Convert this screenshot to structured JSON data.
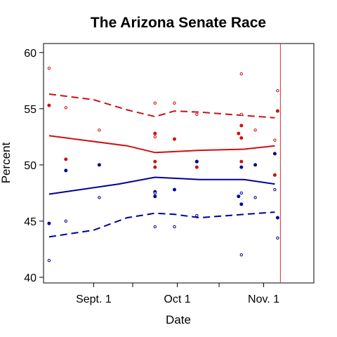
{
  "chart_data": {
    "type": "scatter",
    "title": "The Arizona Senate Race",
    "xlabel": "Date",
    "ylabel": "Percent",
    "x_axis": {
      "range": [
        "2006-08-14",
        "2006-11-19"
      ],
      "tick_labels": [
        {
          "date": "2006-09-01",
          "label": "Sept. 1"
        },
        {
          "date": "2006-10-01",
          "label": "Oct 1"
        },
        {
          "date": "2006-11-01",
          "label": "Nov. 1"
        }
      ],
      "minor_ticks": [
        "2006-09-15",
        "2006-10-16"
      ]
    },
    "y_axis": {
      "range": [
        39.5,
        60.8
      ],
      "ticks": [
        40,
        45,
        50,
        55,
        60
      ]
    },
    "grid": false,
    "reference_line": {
      "date": "2006-11-07",
      "color": "#d03030"
    },
    "colors": {
      "red": "#cc1111",
      "blue": "#000099"
    },
    "series": [
      {
        "color": "#cc1111",
        "style": "solid",
        "x": [
          "2006-08-16",
          "2006-09-13",
          "2006-09-23",
          "2006-10-09",
          "2006-10-25",
          "2006-11-05"
        ],
        "y": [
          52.6,
          51.7,
          51.1,
          51.3,
          51.4,
          51.7
        ]
      },
      {
        "color": "#cc1111",
        "style": "dashed",
        "x": [
          "2006-08-16",
          "2006-09-01",
          "2006-09-13",
          "2006-09-23",
          "2006-09-30",
          "2006-10-09",
          "2006-10-25",
          "2006-11-05"
        ],
        "y": [
          56.3,
          55.8,
          54.9,
          54.3,
          54.8,
          54.7,
          54.4,
          54.2
        ]
      },
      {
        "color": "#000099",
        "style": "solid",
        "x": [
          "2006-08-16",
          "2006-09-10",
          "2006-09-23",
          "2006-10-09",
          "2006-10-25",
          "2006-11-05"
        ],
        "y": [
          47.4,
          48.3,
          48.9,
          48.7,
          48.7,
          48.3
        ]
      },
      {
        "color": "#000099",
        "style": "dashed",
        "x": [
          "2006-08-16",
          "2006-09-01",
          "2006-09-13",
          "2006-09-23",
          "2006-09-30",
          "2006-10-09",
          "2006-10-25",
          "2006-11-05"
        ],
        "y": [
          43.6,
          44.2,
          45.3,
          45.7,
          45.6,
          45.3,
          45.6,
          45.8
        ]
      }
    ],
    "point_sets": [
      {
        "color": "#cc1111",
        "marker": "filled",
        "points": [
          [
            "2006-08-16",
            55.3
          ],
          [
            "2006-08-22",
            50.5
          ],
          [
            "2006-09-23",
            52.8
          ],
          [
            "2006-09-23",
            50.3
          ],
          [
            "2006-09-23",
            49.8
          ],
          [
            "2006-09-30",
            52.3
          ],
          [
            "2006-10-08",
            50.3
          ],
          [
            "2006-10-08",
            49.8
          ],
          [
            "2006-10-23",
            52.8
          ],
          [
            "2006-10-24",
            53.5
          ],
          [
            "2006-10-24",
            52.4
          ],
          [
            "2006-10-24",
            50.3
          ],
          [
            "2006-11-05",
            49.1
          ],
          [
            "2006-11-06",
            54.8
          ]
        ]
      },
      {
        "color": "#cc1111",
        "marker": "open",
        "points": [
          [
            "2006-08-16",
            58.6
          ],
          [
            "2006-08-22",
            55.1
          ],
          [
            "2006-09-03",
            53.1
          ],
          [
            "2006-09-23",
            55.5
          ],
          [
            "2006-09-23",
            52.5
          ],
          [
            "2006-09-30",
            55.5
          ],
          [
            "2006-10-08",
            54.5
          ],
          [
            "2006-10-24",
            58.1
          ],
          [
            "2006-10-24",
            54.5
          ],
          [
            "2006-10-29",
            53.1
          ],
          [
            "2006-11-05",
            52.2
          ],
          [
            "2006-11-06",
            56.6
          ]
        ]
      },
      {
        "color": "#000099",
        "marker": "filled",
        "points": [
          [
            "2006-08-16",
            44.8
          ],
          [
            "2006-08-22",
            49.5
          ],
          [
            "2006-09-03",
            50.0
          ],
          [
            "2006-09-23",
            47.6
          ],
          [
            "2006-09-23",
            47.2
          ],
          [
            "2006-09-30",
            47.8
          ],
          [
            "2006-10-08",
            50.3
          ],
          [
            "2006-10-23",
            47.2
          ],
          [
            "2006-10-24",
            46.5
          ],
          [
            "2006-10-24",
            49.8
          ],
          [
            "2006-10-29",
            50.0
          ],
          [
            "2006-11-05",
            51.0
          ],
          [
            "2006-11-06",
            45.3
          ]
        ]
      },
      {
        "color": "#000099",
        "marker": "open",
        "points": [
          [
            "2006-08-16",
            41.5
          ],
          [
            "2006-08-22",
            45.0
          ],
          [
            "2006-09-03",
            47.1
          ],
          [
            "2006-09-23",
            47.5
          ],
          [
            "2006-09-23",
            44.5
          ],
          [
            "2006-09-30",
            44.5
          ],
          [
            "2006-10-08",
            45.5
          ],
          [
            "2006-10-24",
            47.5
          ],
          [
            "2006-10-24",
            42.0
          ],
          [
            "2006-10-29",
            47.1
          ],
          [
            "2006-11-05",
            47.8
          ],
          [
            "2006-11-06",
            43.5
          ]
        ]
      }
    ]
  }
}
